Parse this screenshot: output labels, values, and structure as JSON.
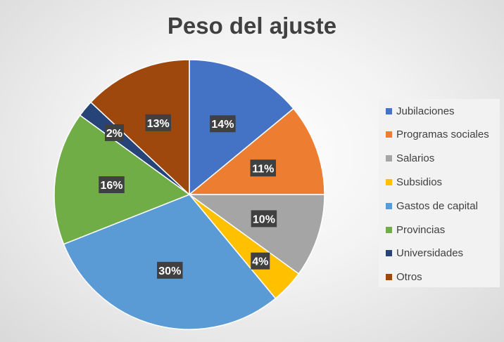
{
  "chart_data": {
    "type": "pie",
    "title": "Peso del ajuste",
    "categories": [
      "Jubilaciones",
      "Programas sociales",
      "Salarios",
      "Subsidios",
      "Gastos de capital",
      "Provincias",
      "Universidades",
      "Otros"
    ],
    "values": [
      14,
      11,
      10,
      4,
      30,
      16,
      2,
      13
    ],
    "labels": [
      "14%",
      "11%",
      "10%",
      "4%",
      "30%",
      "16%",
      "2%",
      "13%"
    ],
    "colors": [
      "#4472C4",
      "#ED7D31",
      "#A5A5A5",
      "#FFC000",
      "#5B9BD5",
      "#70AD47",
      "#264478",
      "#9E480E"
    ],
    "legend_position": "right",
    "start_angle": "12 o'clock, clockwise"
  }
}
